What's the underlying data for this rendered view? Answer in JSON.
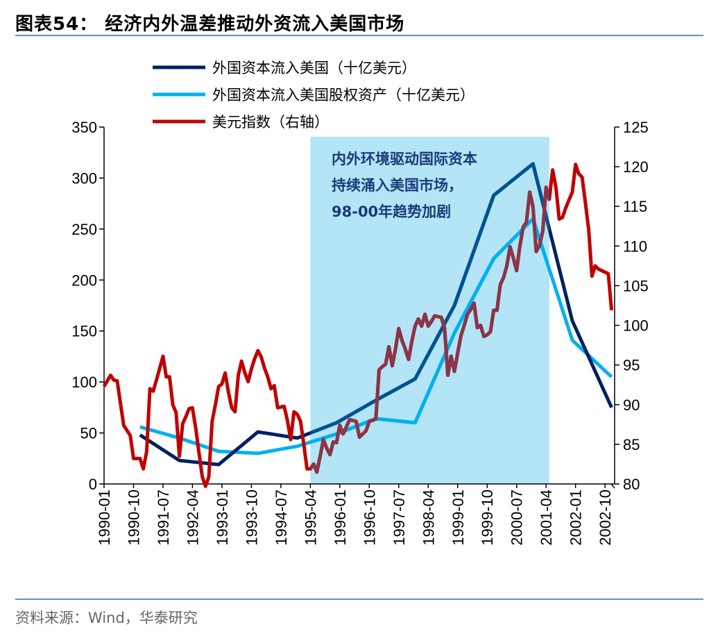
{
  "title": "图表54：  经济内外温差推动外资流入美国市场",
  "source": "资料来源：Wind，华泰研究",
  "chart_data": {
    "type": "line",
    "title": "图表54：  经济内外温差推动外资流入美国市场",
    "x_tick_labels": [
      "1990-01",
      "1990-10",
      "1991-07",
      "1992-04",
      "1993-01",
      "1993-10",
      "1994-07",
      "1995-04",
      "1996-01",
      "1996-10",
      "1997-07",
      "1998-04",
      "1999-01",
      "1999-10",
      "2000-07",
      "2001-04",
      "2002-01",
      "2002-10"
    ],
    "x_range": [
      "1990-01",
      "2002-12"
    ],
    "y_left": {
      "range": [
        0,
        350
      ],
      "ticks": [
        0,
        50,
        100,
        150,
        200,
        250,
        300,
        350
      ]
    },
    "y_right": {
      "range": [
        80,
        125
      ],
      "ticks": [
        80,
        85,
        90,
        95,
        100,
        105,
        110,
        115,
        120,
        125
      ]
    },
    "grid": false,
    "legend_placement": "top",
    "shaded_region": {
      "start": "1995-04",
      "end": "2001-05",
      "color": "#B3E5F7"
    },
    "annotation": [
      "内外环境驱动国际资本",
      "持续涌入美国市场，",
      "98-00年趋势加剧"
    ],
    "series": [
      {
        "name": "外国资本流入美国（十亿美元）",
        "axis": "left",
        "color": "#002060",
        "color_in_shade": "#005390",
        "x": [
          "1990-12",
          "1991-12",
          "1992-12",
          "1993-12",
          "1994-12",
          "1995-12",
          "1996-12",
          "1997-12",
          "1998-12",
          "1999-12",
          "2000-12",
          "2001-12",
          "2002-12"
        ],
        "values": [
          48,
          23,
          19,
          51,
          45,
          60,
          82,
          103,
          175,
          283,
          314,
          160,
          75
        ]
      },
      {
        "name": "外国资本流入美国股权资产（十亿美元）",
        "axis": "left",
        "color": "#00B0F0",
        "color_in_shade": "#00B0F0",
        "x": [
          "1990-12",
          "1991-12",
          "1992-12",
          "1993-12",
          "1994-12",
          "1995-12",
          "1996-12",
          "1997-12",
          "1998-12",
          "1999-12",
          "2000-12",
          "2001-12",
          "2002-12"
        ],
        "values": [
          56,
          45,
          32,
          30,
          37,
          49,
          64,
          60,
          148,
          221,
          260,
          141,
          105
        ]
      },
      {
        "name": "美元指数（右轴）",
        "axis": "right",
        "color": "#C00000",
        "color_in_shade": "#8A3548",
        "points": [
          [
            "1990-01",
            92.3
          ],
          [
            "1990-03",
            93.7
          ],
          [
            "1990-04",
            93.1
          ],
          [
            "1990-05",
            93.0
          ],
          [
            "1990-07",
            87.4
          ],
          [
            "1990-09",
            86.1
          ],
          [
            "1990-10",
            83.2
          ],
          [
            "1990-12",
            83.2
          ],
          [
            "1991-01",
            81.9
          ],
          [
            "1991-02",
            84.1
          ],
          [
            "1991-03",
            92.0
          ],
          [
            "1991-04",
            91.7
          ],
          [
            "1991-05",
            93.1
          ],
          [
            "1991-07",
            96.1
          ],
          [
            "1991-08",
            93.5
          ],
          [
            "1991-09",
            93.5
          ],
          [
            "1991-10",
            90.0
          ],
          [
            "1991-11",
            89.0
          ],
          [
            "1991-12",
            83.5
          ],
          [
            "1992-01",
            87.6
          ],
          [
            "1992-02",
            88.5
          ],
          [
            "1992-03",
            89.5
          ],
          [
            "1992-04",
            89.6
          ],
          [
            "1992-05",
            87.0
          ],
          [
            "1992-06",
            83.9
          ],
          [
            "1992-07",
            80.9
          ],
          [
            "1992-08",
            79.7
          ],
          [
            "1992-09",
            80.9
          ],
          [
            "1992-10",
            87.9
          ],
          [
            "1992-11",
            90.0
          ],
          [
            "1992-12",
            92.3
          ],
          [
            "1993-01",
            92.6
          ],
          [
            "1993-02",
            94.0
          ],
          [
            "1993-03",
            91.5
          ],
          [
            "1993-04",
            89.6
          ],
          [
            "1993-05",
            89.1
          ],
          [
            "1993-06",
            93.7
          ],
          [
            "1993-07",
            95.5
          ],
          [
            "1993-08",
            94.0
          ],
          [
            "1993-09",
            92.9
          ],
          [
            "1993-10",
            94.5
          ],
          [
            "1993-11",
            95.8
          ],
          [
            "1993-12",
            96.8
          ],
          [
            "1994-01",
            96.0
          ],
          [
            "1994-02",
            94.6
          ],
          [
            "1994-03",
            93.5
          ],
          [
            "1994-04",
            92.0
          ],
          [
            "1994-05",
            92.4
          ],
          [
            "1994-06",
            89.6
          ],
          [
            "1994-07",
            89.7
          ],
          [
            "1994-08",
            89.8
          ],
          [
            "1994-09",
            88.0
          ],
          [
            "1994-10",
            85.6
          ],
          [
            "1994-11",
            89.1
          ],
          [
            "1994-12",
            88.8
          ],
          [
            "1995-01",
            87.9
          ],
          [
            "1995-02",
            85.0
          ],
          [
            "1995-03",
            81.9
          ],
          [
            "1995-04",
            81.9
          ],
          [
            "1995-05",
            82.5
          ],
          [
            "1995-06",
            81.5
          ],
          [
            "1995-07",
            83.5
          ],
          [
            "1995-08",
            85.6
          ],
          [
            "1995-09",
            84.5
          ],
          [
            "1995-10",
            83.7
          ],
          [
            "1995-11",
            85.3
          ],
          [
            "1995-12",
            85.2
          ],
          [
            "1996-01",
            87.4
          ],
          [
            "1996-02",
            86.3
          ],
          [
            "1996-03",
            87.2
          ],
          [
            "1996-04",
            88.1
          ],
          [
            "1996-05",
            88.0
          ],
          [
            "1996-06",
            87.9
          ],
          [
            "1996-07",
            85.9
          ],
          [
            "1996-08",
            86.3
          ],
          [
            "1996-09",
            86.7
          ],
          [
            "1996-10",
            87.9
          ],
          [
            "1996-11",
            88.0
          ],
          [
            "1996-12",
            88.2
          ],
          [
            "1997-01",
            94.4
          ],
          [
            "1997-02",
            94.8
          ],
          [
            "1997-03",
            95.1
          ],
          [
            "1997-04",
            97.3
          ],
          [
            "1997-05",
            94.9
          ],
          [
            "1997-06",
            97.0
          ],
          [
            "1997-07",
            99.6
          ],
          [
            "1997-08",
            98.1
          ],
          [
            "1997-09",
            97.0
          ],
          [
            "1997-10",
            95.7
          ],
          [
            "1997-11",
            98.0
          ],
          [
            "1997-12",
            99.9
          ],
          [
            "1998-01",
            100.8
          ],
          [
            "1998-02",
            99.9
          ],
          [
            "1998-03",
            101.4
          ],
          [
            "1998-04",
            99.9
          ],
          [
            "1998-05",
            100.5
          ],
          [
            "1998-06",
            101.2
          ],
          [
            "1998-07",
            101.1
          ],
          [
            "1998-08",
            101.0
          ],
          [
            "1998-09",
            99.6
          ],
          [
            "1998-10",
            93.7
          ],
          [
            "1998-11",
            96.1
          ],
          [
            "1998-12",
            94.2
          ],
          [
            "1999-01",
            96.5
          ],
          [
            "1999-02",
            98.7
          ],
          [
            "1999-03",
            100.0
          ],
          [
            "1999-04",
            101.4
          ],
          [
            "1999-05",
            102.0
          ],
          [
            "1999-06",
            102.8
          ],
          [
            "1999-07",
            99.7
          ],
          [
            "1999-08",
            100.0
          ],
          [
            "1999-09",
            98.6
          ],
          [
            "1999-10",
            98.8
          ],
          [
            "1999-11",
            99.2
          ],
          [
            "1999-12",
            101.9
          ],
          [
            "2000-01",
            101.9
          ],
          [
            "2000-02",
            105.1
          ],
          [
            "2000-03",
            106.0
          ],
          [
            "2000-04",
            107.5
          ],
          [
            "2000-05",
            109.9
          ],
          [
            "2000-06",
            108.5
          ],
          [
            "2000-07",
            106.9
          ],
          [
            "2000-08",
            110.0
          ],
          [
            "2000-09",
            112.4
          ],
          [
            "2000-10",
            113.0
          ],
          [
            "2000-11",
            116.8
          ],
          [
            "2000-12",
            115.0
          ],
          [
            "2001-01",
            109.3
          ],
          [
            "2001-02",
            110.1
          ],
          [
            "2001-03",
            111.9
          ],
          [
            "2001-04",
            117.4
          ],
          [
            "2001-05",
            115.9
          ],
          [
            "2001-06",
            119.6
          ],
          [
            "2001-07",
            117.4
          ],
          [
            "2001-08",
            113.4
          ],
          [
            "2001-09",
            113.6
          ],
          [
            "2001-10",
            114.8
          ],
          [
            "2001-11",
            115.8
          ],
          [
            "2001-12",
            116.8
          ],
          [
            "2002-01",
            120.3
          ],
          [
            "2002-02",
            119.1
          ],
          [
            "2002-03",
            118.7
          ],
          [
            "2002-04",
            115.5
          ],
          [
            "2002-05",
            112.1
          ],
          [
            "2002-06",
            106.2
          ],
          [
            "2002-07",
            107.5
          ],
          [
            "2002-08",
            107.1
          ],
          [
            "2002-09",
            106.9
          ],
          [
            "2002-10",
            106.7
          ],
          [
            "2002-11",
            106.5
          ],
          [
            "2002-12",
            101.9
          ]
        ]
      }
    ]
  }
}
